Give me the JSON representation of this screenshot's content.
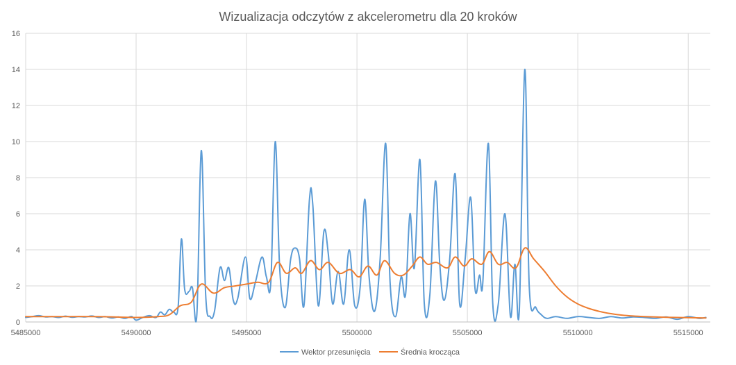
{
  "chart_data": {
    "type": "line",
    "title": "Wizualizacja odczytów z akcelerometru dla 20 kroków",
    "xlabel": "",
    "ylabel": "",
    "xlim": [
      5485000,
      5516000
    ],
    "ylim": [
      0,
      16
    ],
    "x_ticks": [
      "5485000",
      "5490000",
      "5495000",
      "5500000",
      "5505000",
      "5510000",
      "5515000"
    ],
    "y_ticks": [
      "0",
      "2",
      "4",
      "6",
      "8",
      "10",
      "12",
      "14",
      "16"
    ],
    "grid": true,
    "legend_position": "bottom",
    "series": [
      {
        "name": "Wektor przesunięcia",
        "color": "#5b9bd5",
        "points": [
          [
            5485000,
            0.25
          ],
          [
            5485300,
            0.3
          ],
          [
            5485600,
            0.35
          ],
          [
            5485900,
            0.28
          ],
          [
            5486200,
            0.3
          ],
          [
            5486500,
            0.25
          ],
          [
            5486800,
            0.32
          ],
          [
            5487100,
            0.26
          ],
          [
            5487400,
            0.3
          ],
          [
            5487700,
            0.28
          ],
          [
            5488000,
            0.33
          ],
          [
            5488300,
            0.25
          ],
          [
            5488600,
            0.3
          ],
          [
            5488900,
            0.22
          ],
          [
            5489200,
            0.28
          ],
          [
            5489500,
            0.2
          ],
          [
            5489800,
            0.3
          ],
          [
            5490000,
            0.1
          ],
          [
            5490300,
            0.25
          ],
          [
            5490600,
            0.35
          ],
          [
            5490900,
            0.25
          ],
          [
            5491100,
            0.55
          ],
          [
            5491300,
            0.4
          ],
          [
            5491500,
            0.7
          ],
          [
            5491700,
            0.55
          ],
          [
            5491900,
            0.8
          ],
          [
            5492050,
            4.6
          ],
          [
            5492200,
            1.8
          ],
          [
            5492400,
            1.7
          ],
          [
            5492550,
            1.9
          ],
          [
            5492750,
            0.4
          ],
          [
            5492950,
            9.5
          ],
          [
            5493150,
            1.5
          ],
          [
            5493350,
            0.3
          ],
          [
            5493550,
            0.6
          ],
          [
            5493800,
            3.0
          ],
          [
            5494000,
            2.3
          ],
          [
            5494200,
            3.0
          ],
          [
            5494400,
            1.2
          ],
          [
            5494600,
            1.3
          ],
          [
            5494950,
            3.6
          ],
          [
            5495150,
            1.3
          ],
          [
            5495400,
            2.2
          ],
          [
            5495700,
            3.6
          ],
          [
            5495900,
            2.5
          ],
          [
            5496100,
            2.2
          ],
          [
            5496300,
            10.0
          ],
          [
            5496500,
            3.0
          ],
          [
            5496750,
            0.8
          ],
          [
            5497000,
            3.5
          ],
          [
            5497200,
            4.1
          ],
          [
            5497400,
            3.5
          ],
          [
            5497600,
            0.9
          ],
          [
            5497850,
            6.8
          ],
          [
            5498000,
            6.5
          ],
          [
            5498250,
            0.9
          ],
          [
            5498500,
            5.0
          ],
          [
            5498700,
            3.8
          ],
          [
            5498900,
            1.0
          ],
          [
            5499150,
            2.8
          ],
          [
            5499400,
            1.0
          ],
          [
            5499650,
            4.0
          ],
          [
            5499900,
            0.9
          ],
          [
            5500150,
            2.0
          ],
          [
            5500350,
            6.8
          ],
          [
            5500550,
            2.5
          ],
          [
            5500800,
            0.6
          ],
          [
            5501050,
            3.5
          ],
          [
            5501300,
            9.9
          ],
          [
            5501500,
            2.2
          ],
          [
            5501750,
            0.3
          ],
          [
            5502000,
            2.5
          ],
          [
            5502200,
            1.5
          ],
          [
            5502400,
            6.0
          ],
          [
            5502600,
            3.0
          ],
          [
            5502850,
            9.0
          ],
          [
            5503050,
            1.0
          ],
          [
            5503300,
            1.5
          ],
          [
            5503550,
            7.8
          ],
          [
            5503750,
            3.2
          ],
          [
            5503950,
            1.2
          ],
          [
            5504200,
            3.5
          ],
          [
            5504450,
            8.2
          ],
          [
            5504650,
            1.0
          ],
          [
            5504900,
            3.5
          ],
          [
            5505150,
            6.9
          ],
          [
            5505350,
            1.8
          ],
          [
            5505550,
            2.6
          ],
          [
            5505700,
            2.2
          ],
          [
            5505950,
            9.9
          ],
          [
            5506150,
            1.0
          ],
          [
            5506400,
            1.0
          ],
          [
            5506700,
            6.0
          ],
          [
            5506950,
            0.3
          ],
          [
            5507150,
            3.2
          ],
          [
            5507350,
            0.6
          ],
          [
            5507600,
            14.0
          ],
          [
            5507800,
            2.0
          ],
          [
            5508100,
            0.8
          ],
          [
            5508350,
            0.4
          ],
          [
            5508600,
            0.2
          ],
          [
            5509000,
            0.3
          ],
          [
            5509500,
            0.2
          ],
          [
            5510000,
            0.3
          ],
          [
            5510500,
            0.25
          ],
          [
            5511000,
            0.2
          ],
          [
            5511500,
            0.3
          ],
          [
            5512000,
            0.22
          ],
          [
            5512500,
            0.28
          ],
          [
            5513000,
            0.25
          ],
          [
            5513500,
            0.2
          ],
          [
            5514000,
            0.28
          ],
          [
            5514500,
            0.15
          ],
          [
            5515000,
            0.3
          ],
          [
            5515500,
            0.2
          ],
          [
            5515800,
            0.25
          ]
        ]
      },
      {
        "name": "Średnia krocząca",
        "color": "#ed7d31",
        "points": [
          [
            5485000,
            0.3
          ],
          [
            5486000,
            0.3
          ],
          [
            5487000,
            0.3
          ],
          [
            5488000,
            0.3
          ],
          [
            5489000,
            0.28
          ],
          [
            5490000,
            0.25
          ],
          [
            5491000,
            0.3
          ],
          [
            5491500,
            0.4
          ],
          [
            5492000,
            0.9
          ],
          [
            5492500,
            1.1
          ],
          [
            5492950,
            2.1
          ],
          [
            5493500,
            1.6
          ],
          [
            5494000,
            1.9
          ],
          [
            5494500,
            2.0
          ],
          [
            5495000,
            2.1
          ],
          [
            5495500,
            2.2
          ],
          [
            5496000,
            2.2
          ],
          [
            5496400,
            3.3
          ],
          [
            5496800,
            2.7
          ],
          [
            5497200,
            3.0
          ],
          [
            5497500,
            2.7
          ],
          [
            5497900,
            3.4
          ],
          [
            5498300,
            2.9
          ],
          [
            5498700,
            3.3
          ],
          [
            5499200,
            2.7
          ],
          [
            5499700,
            2.9
          ],
          [
            5500100,
            2.5
          ],
          [
            5500500,
            3.1
          ],
          [
            5500900,
            2.6
          ],
          [
            5501250,
            3.4
          ],
          [
            5501700,
            2.7
          ],
          [
            5502100,
            2.6
          ],
          [
            5502500,
            3.1
          ],
          [
            5502850,
            3.6
          ],
          [
            5503200,
            3.2
          ],
          [
            5503600,
            3.3
          ],
          [
            5504100,
            3.0
          ],
          [
            5504450,
            3.6
          ],
          [
            5504850,
            3.1
          ],
          [
            5505200,
            3.5
          ],
          [
            5505650,
            3.2
          ],
          [
            5506000,
            3.9
          ],
          [
            5506400,
            3.2
          ],
          [
            5506800,
            3.3
          ],
          [
            5507200,
            3.0
          ],
          [
            5507600,
            4.1
          ],
          [
            5508000,
            3.5
          ],
          [
            5508500,
            2.8
          ],
          [
            5509000,
            2.0
          ],
          [
            5509500,
            1.4
          ],
          [
            5510000,
            1.0
          ],
          [
            5510500,
            0.75
          ],
          [
            5511000,
            0.58
          ],
          [
            5511500,
            0.46
          ],
          [
            5512000,
            0.38
          ],
          [
            5512500,
            0.33
          ],
          [
            5513000,
            0.3
          ],
          [
            5513500,
            0.28
          ],
          [
            5514000,
            0.26
          ],
          [
            5514500,
            0.25
          ],
          [
            5515000,
            0.24
          ],
          [
            5515800,
            0.22
          ]
        ]
      }
    ]
  }
}
